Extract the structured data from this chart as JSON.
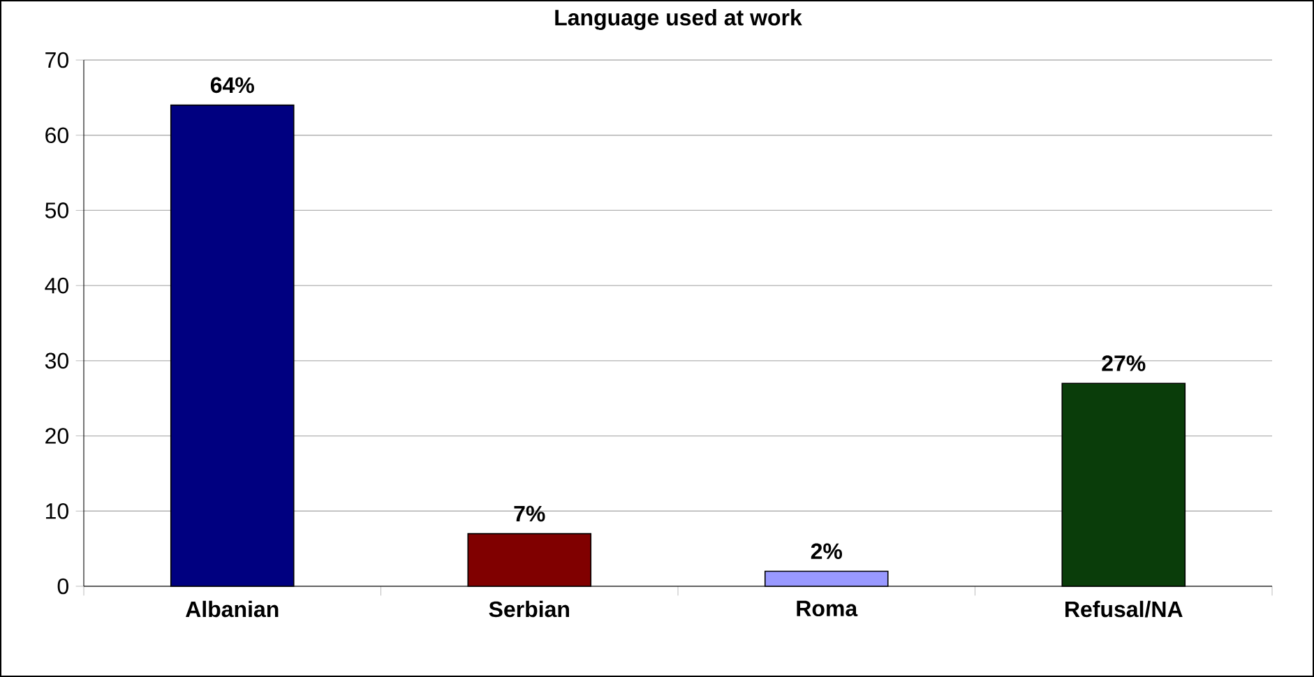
{
  "chart_data": {
    "type": "bar",
    "title": "Language used at work",
    "categories": [
      "Albanian",
      "Serbian",
      "Roma",
      "Refusal/NA"
    ],
    "values": [
      64,
      7,
      2,
      27
    ],
    "value_labels": [
      "64%",
      "7%",
      "2%",
      "27%"
    ],
    "colors": [
      "#000080",
      "#800000",
      "#9999ff",
      "#0a3d0a"
    ],
    "ylim": [
      0,
      70
    ],
    "yticks": [
      0,
      10,
      20,
      30,
      40,
      50,
      60,
      70
    ],
    "grid": "y"
  }
}
